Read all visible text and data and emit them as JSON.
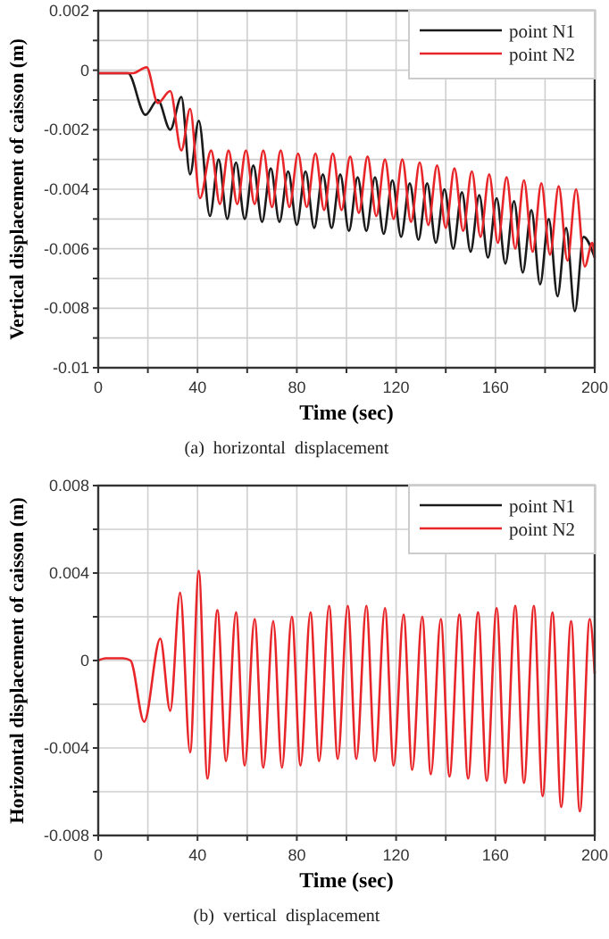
{
  "chart_data": [
    {
      "type": "line",
      "xlabel": "Time (sec)",
      "ylabel": "Vertical displacement of caisson (m)",
      "annotations": [
        "(a)  horizontal  displacement"
      ],
      "xlim": [
        0,
        200
      ],
      "xticks": [
        0,
        {
          "value": 20,
          "label": null
        },
        40,
        {
          "value": 60,
          "label": null
        },
        80,
        {
          "value": 100,
          "label": null
        },
        120,
        {
          "value": 140,
          "label": null
        },
        160,
        {
          "value": 180,
          "label": null
        },
        200
      ],
      "ylim": [
        -0.01,
        0.002
      ],
      "yticks": [
        -0.01,
        {
          "value": -0.009,
          "label": null
        },
        -0.008,
        {
          "value": -0.007,
          "label": null
        },
        -0.006,
        {
          "value": -0.005,
          "label": null
        },
        -0.004,
        {
          "value": -0.003,
          "label": null
        },
        -0.002,
        {
          "value": -0.001,
          "label": null
        },
        0,
        {
          "value": 0.001,
          "label": null
        },
        0.002
      ],
      "grid": true,
      "legend": "top right",
      "line_style": "solid",
      "series": [
        {
          "name": "point N1",
          "color": "#1a1a1a",
          "x": [
            0,
            12,
            19,
            24,
            29,
            33.5,
            37,
            40.5,
            45,
            48.5,
            52,
            55.5,
            59,
            62.5,
            66,
            69.5,
            73,
            76.5,
            80,
            83.5,
            87,
            90.5,
            94,
            97.5,
            101,
            104.5,
            108,
            111.5,
            115,
            118.5,
            122,
            125.5,
            129,
            132.5,
            136,
            139.5,
            143,
            146.5,
            150,
            153.5,
            157,
            160.5,
            164,
            167.5,
            171,
            174.5,
            178,
            181.5,
            185,
            188.5,
            192,
            195.5,
            200
          ],
          "values": [
            -0.0001,
            -0.0001,
            -0.0015,
            -0.001,
            -0.002,
            -0.0009,
            -0.0035,
            -0.0017,
            -0.0049,
            -0.003,
            -0.005,
            -0.0031,
            -0.005,
            -0.0032,
            -0.0051,
            -0.0033,
            -0.0051,
            -0.0034,
            -0.0052,
            -0.0034,
            -0.0053,
            -0.0035,
            -0.0053,
            -0.0035,
            -0.0054,
            -0.0036,
            -0.0054,
            -0.0036,
            -0.0055,
            -0.0037,
            -0.0056,
            -0.0038,
            -0.0057,
            -0.0038,
            -0.0058,
            -0.004,
            -0.006,
            -0.0041,
            -0.0061,
            -0.0042,
            -0.0063,
            -0.0043,
            -0.0065,
            -0.0044,
            -0.0068,
            -0.0047,
            -0.0072,
            -0.005,
            -0.0076,
            -0.0053,
            -0.0081,
            -0.0056,
            -0.0063
          ]
        },
        {
          "name": "point N2",
          "color": "#e8262a",
          "x": [
            0,
            14,
            19.5,
            24,
            29,
            33.5,
            37,
            41,
            45.5,
            49,
            52.5,
            56,
            59.5,
            63,
            66.5,
            70,
            73.5,
            77,
            80.5,
            84,
            87.5,
            91,
            94.5,
            98,
            101.5,
            105,
            108.5,
            112,
            115.5,
            119,
            122.5,
            126,
            129.5,
            133,
            136.5,
            140,
            143.5,
            147,
            150.5,
            154,
            157.5,
            161,
            164.5,
            168,
            171.5,
            175,
            178.5,
            182,
            185.5,
            189,
            192.5,
            196,
            199,
            200
          ],
          "values": [
            -0.0001,
            -0.0001,
            0.0001,
            -0.0011,
            -0.0007,
            -0.0027,
            -0.0013,
            -0.0043,
            -0.0027,
            -0.0045,
            -0.0027,
            -0.0045,
            -0.0027,
            -0.0045,
            -0.0027,
            -0.0046,
            -0.0027,
            -0.0046,
            -0.0028,
            -0.0046,
            -0.0028,
            -0.0047,
            -0.0028,
            -0.0047,
            -0.0029,
            -0.0048,
            -0.0029,
            -0.0049,
            -0.003,
            -0.005,
            -0.003,
            -0.0051,
            -0.0031,
            -0.0052,
            -0.0032,
            -0.0053,
            -0.0033,
            -0.0054,
            -0.0034,
            -0.0056,
            -0.0035,
            -0.0058,
            -0.0036,
            -0.006,
            -0.0037,
            -0.0061,
            -0.0038,
            -0.0062,
            -0.0039,
            -0.0064,
            -0.004,
            -0.0066,
            -0.0058,
            -0.0063
          ]
        }
      ]
    },
    {
      "type": "line",
      "xlabel": "Time (sec)",
      "ylabel": "Horizontal displacement of caisson (m)",
      "annotations": [
        "(b)  vertical  displacement"
      ],
      "xlim": [
        0,
        200
      ],
      "xticks": [
        0,
        {
          "value": 20,
          "label": null
        },
        40,
        {
          "value": 60,
          "label": null
        },
        80,
        {
          "value": 100,
          "label": null
        },
        120,
        {
          "value": 140,
          "label": null
        },
        160,
        {
          "value": 180,
          "label": null
        },
        200
      ],
      "ylim": [
        -0.008,
        0.008
      ],
      "yticks": [
        -0.008,
        {
          "value": -0.006,
          "label": null
        },
        -0.004,
        {
          "value": -0.002,
          "label": null
        },
        0,
        {
          "value": 0.002,
          "label": null
        },
        0.004,
        {
          "value": 0.006,
          "label": null
        },
        0.008
      ],
      "grid": true,
      "legend": "top right",
      "line_style": "solid",
      "series": [
        {
          "name": "point N1",
          "color": "#1a1a1a"
        },
        {
          "name": "point N2",
          "color": "#e8262a",
          "x": [
            0,
            3,
            10,
            13,
            18.5,
            25,
            29,
            33,
            37,
            40.5,
            44,
            48,
            51.5,
            55.5,
            59,
            63,
            66.5,
            70.5,
            74,
            78,
            81.5,
            85.5,
            89,
            93,
            96.5,
            100.5,
            104,
            108,
            111.5,
            115.5,
            119,
            123,
            126.5,
            130.5,
            134,
            138,
            141.5,
            145.5,
            149,
            153,
            156.5,
            160.5,
            164,
            168,
            171.5,
            175.5,
            179,
            183,
            186.5,
            190.5,
            194,
            198,
            200
          ],
          "values": [
            0,
            0.0001,
            0.0001,
            0,
            -0.0028,
            0.001,
            -0.0023,
            0.0031,
            -0.0042,
            0.0041,
            -0.0054,
            0.0023,
            -0.0046,
            0.0022,
            -0.0048,
            0.0019,
            -0.0049,
            0.0018,
            -0.0049,
            0.002,
            -0.0048,
            0.0022,
            -0.0046,
            0.0025,
            -0.0045,
            0.0025,
            -0.0045,
            0.0025,
            -0.0046,
            0.0024,
            -0.0048,
            0.0021,
            -0.005,
            0.002,
            -0.0052,
            0.0019,
            -0.0053,
            0.0021,
            -0.0054,
            0.0022,
            -0.0055,
            0.0024,
            -0.0056,
            0.0025,
            -0.0056,
            0.0025,
            -0.0062,
            0.0022,
            -0.0067,
            0.0018,
            -0.0069,
            0.0019,
            -0.0006
          ]
        }
      ]
    }
  ]
}
